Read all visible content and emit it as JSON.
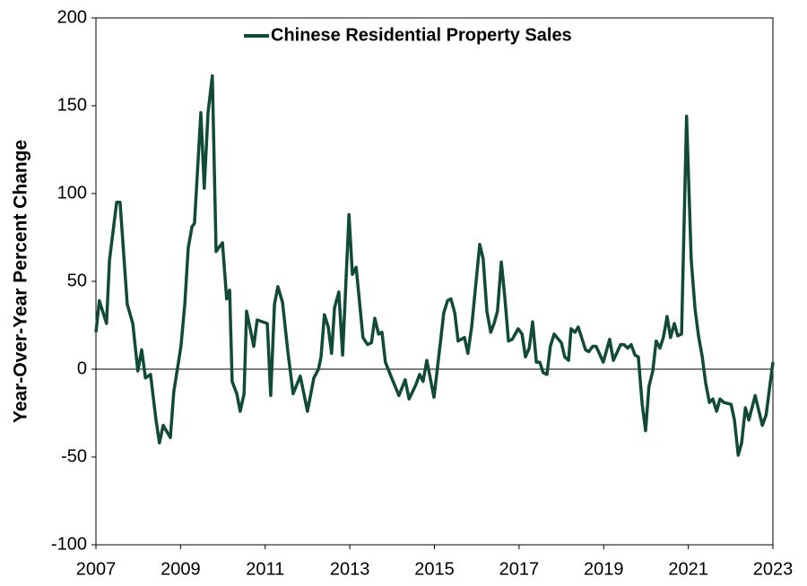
{
  "chart_data": {
    "type": "line",
    "legend": "Chinese Residential Property Sales",
    "y_label": "Year-Over-Year Percent Change",
    "x": [
      2007.0,
      2007.08,
      2007.25,
      2007.32,
      2007.49,
      2007.57,
      2007.74,
      2007.87,
      2007.99,
      2008.08,
      2008.17,
      2008.29,
      2008.42,
      2008.5,
      2008.59,
      2008.76,
      2008.84,
      2009.01,
      2009.1,
      2009.18,
      2009.27,
      2009.33,
      2009.48,
      2009.56,
      2009.65,
      2009.75,
      2009.84,
      2009.99,
      2010.09,
      2010.16,
      2010.22,
      2010.33,
      2010.41,
      2010.5,
      2010.56,
      2010.73,
      2010.81,
      2011.05,
      2011.13,
      2011.22,
      2011.3,
      2011.41,
      2011.53,
      2011.66,
      2011.83,
      2012.0,
      2012.15,
      2012.26,
      2012.32,
      2012.4,
      2012.49,
      2012.57,
      2012.64,
      2012.74,
      2012.83,
      2012.98,
      2013.06,
      2013.15,
      2013.31,
      2013.42,
      2013.51,
      2013.59,
      2013.68,
      2013.76,
      2013.84,
      2013.99,
      2014.16,
      2014.31,
      2014.4,
      2014.56,
      2014.65,
      2014.73,
      2014.82,
      2014.99,
      2015.14,
      2015.22,
      2015.31,
      2015.39,
      2015.48,
      2015.56,
      2015.71,
      2015.79,
      2015.88,
      2016.07,
      2016.15,
      2016.24,
      2016.33,
      2016.41,
      2016.49,
      2016.58,
      2016.66,
      2016.75,
      2016.84,
      2016.98,
      2017.07,
      2017.15,
      2017.24,
      2017.32,
      2017.41,
      2017.49,
      2017.57,
      2017.66,
      2017.74,
      2017.83,
      2018.0,
      2018.08,
      2018.17,
      2018.23,
      2018.32,
      2018.4,
      2018.57,
      2018.65,
      2018.74,
      2018.82,
      2018.99,
      2019.14,
      2019.23,
      2019.4,
      2019.48,
      2019.57,
      2019.65,
      2019.74,
      2019.82,
      2019.91,
      2019.99,
      2020.07,
      2020.16,
      2020.24,
      2020.33,
      2020.41,
      2020.5,
      2020.58,
      2020.67,
      2020.75,
      2020.84,
      2020.96,
      2021.07,
      2021.16,
      2021.24,
      2021.33,
      2021.41,
      2021.5,
      2021.58,
      2021.67,
      2021.75,
      2021.84,
      2022.01,
      2022.09,
      2022.18,
      2022.26,
      2022.35,
      2022.43,
      2022.58,
      2022.67,
      2022.75,
      2022.84,
      2023.0
    ],
    "values": [
      21,
      39,
      26,
      62,
      95,
      95,
      37,
      26,
      -1,
      11,
      -5,
      -3,
      -29,
      -42,
      -32,
      -39,
      -13,
      13,
      37,
      69,
      81,
      83,
      146,
      103,
      146,
      167,
      67,
      72,
      40,
      45,
      -7,
      -14,
      -24,
      -14,
      33,
      13,
      28,
      26,
      -15,
      37,
      47,
      38,
      11,
      -14,
      -4,
      -24,
      -5,
      0,
      7,
      31,
      24,
      9,
      35,
      44,
      8,
      88,
      54,
      58,
      18,
      14,
      15,
      29,
      20,
      21,
      4,
      -5,
      -15,
      -6,
      -17,
      -9,
      -3,
      -7,
      5,
      -16,
      15,
      32,
      39,
      40,
      32,
      16,
      18,
      9,
      24,
      71,
      63,
      33,
      21,
      26,
      33,
      61,
      42,
      16,
      17,
      23,
      20,
      7,
      12,
      27,
      4,
      4,
      -2,
      -3,
      13,
      20,
      15,
      7,
      5,
      23,
      21,
      24,
      11,
      10,
      13,
      13,
      4,
      17,
      5,
      14,
      14,
      12,
      14,
      8,
      7,
      -20,
      -35,
      -10,
      -1,
      16,
      12,
      18,
      30,
      18,
      26,
      19,
      20,
      144,
      62,
      34,
      19,
      7,
      -8,
      -19,
      -17,
      -24,
      -17,
      -19,
      -20,
      -29,
      -49,
      -42,
      -22,
      -29,
      -15,
      -24,
      -32,
      -26,
      4
    ],
    "color": "#124a3a",
    "xlim": [
      2007,
      2023
    ],
    "xticks": [
      2007,
      2009,
      2011,
      2013,
      2015,
      2017,
      2019,
      2021,
      2023
    ],
    "ylim": [
      -100,
      200
    ],
    "yticks": [
      -100,
      -50,
      0,
      50,
      100,
      150,
      200
    ],
    "grid": false,
    "legend_position": "top"
  }
}
